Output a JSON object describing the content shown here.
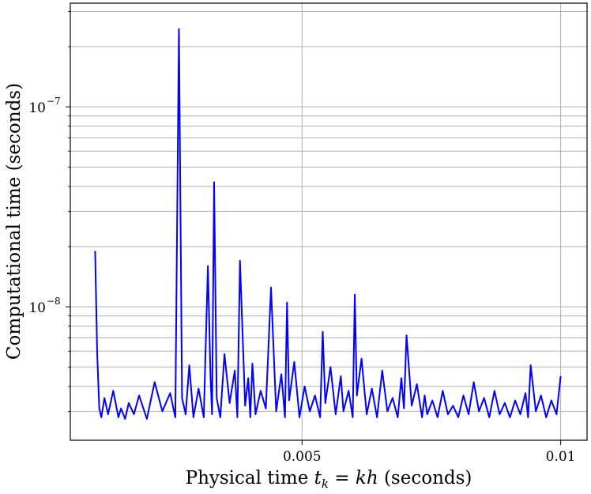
{
  "chart_data": {
    "type": "line",
    "title": "",
    "xlabel_parts": [
      "Physical time ",
      "t",
      "k",
      " = ",
      "kh",
      " (seconds)"
    ],
    "ylabel": "Computational time (seconds)",
    "x_scale": "linear",
    "y_scale": "log",
    "xlim": [
      0.00052,
      0.01051
    ],
    "ylim": [
      2.15e-09,
      3.3e-07
    ],
    "x_ticks": [
      {
        "value": 0.005,
        "label": "0.005"
      },
      {
        "value": 0.01,
        "label": "0.01"
      }
    ],
    "y_major_ticks": [
      {
        "value": 1e-08,
        "base": "10",
        "exp": "−8"
      },
      {
        "value": 1e-07,
        "base": "10",
        "exp": "−7"
      }
    ],
    "y_minor_ticks": [
      3e-09,
      4e-09,
      5e-09,
      6e-09,
      7e-09,
      8e-09,
      9e-09,
      2e-08,
      3e-08,
      4e-08,
      5e-08,
      6e-08,
      7e-08,
      8e-08,
      9e-08,
      2e-07,
      3e-07
    ],
    "grid": true,
    "series": [
      {
        "color": "#0000ff",
        "x": [
          0.001,
          0.00104,
          0.00108,
          0.00112,
          0.00118,
          0.00125,
          0.00135,
          0.00145,
          0.0015,
          0.00158,
          0.00165,
          0.00175,
          0.00185,
          0.002,
          0.00215,
          0.0023,
          0.00245,
          0.00255,
          0.00262,
          0.00268,
          0.00275,
          0.00282,
          0.0029,
          0.003,
          0.0031,
          0.00318,
          0.00323,
          0.00326,
          0.0033,
          0.00335,
          0.00342,
          0.0035,
          0.0036,
          0.0037,
          0.00375,
          0.0038,
          0.0039,
          0.00396,
          0.004,
          0.00404,
          0.0041,
          0.0042,
          0.0043,
          0.0044,
          0.0045,
          0.0046,
          0.00467,
          0.00471,
          0.00475,
          0.00485,
          0.00495,
          0.00505,
          0.00515,
          0.00525,
          0.00535,
          0.0054,
          0.00545,
          0.00555,
          0.00565,
          0.00575,
          0.0058,
          0.0059,
          0.00598,
          0.00602,
          0.00606,
          0.00615,
          0.00625,
          0.00635,
          0.00645,
          0.00655,
          0.00665,
          0.00675,
          0.00685,
          0.00692,
          0.00697,
          0.00702,
          0.00712,
          0.00722,
          0.00732,
          0.00737,
          0.00742,
          0.00752,
          0.00762,
          0.00772,
          0.00782,
          0.00792,
          0.00802,
          0.00812,
          0.00822,
          0.00832,
          0.00842,
          0.00852,
          0.00862,
          0.00872,
          0.00882,
          0.00892,
          0.00902,
          0.00912,
          0.00922,
          0.00932,
          0.00937,
          0.00942,
          0.00952,
          0.00962,
          0.00972,
          0.00982,
          0.00992,
          0.01
        ],
        "y": [
          1.9e-08,
          5.8e-09,
          3.1e-09,
          2.8e-09,
          3.5e-09,
          2.9e-09,
          3.8e-09,
          2.8e-09,
          3.1e-09,
          2.75e-09,
          3.3e-09,
          2.9e-09,
          3.6e-09,
          2.75e-09,
          4.2e-09,
          3e-09,
          3.7e-09,
          2.8e-09,
          2.45e-07,
          3.5e-09,
          2.9e-09,
          5.1e-09,
          2.8e-09,
          3.9e-09,
          2.8e-09,
          1.6e-08,
          4.5e-09,
          2.9e-09,
          4.2e-08,
          3.5e-09,
          2.8e-09,
          5.8e-09,
          3.3e-09,
          4.8e-09,
          2.8e-09,
          1.7e-08,
          3.2e-09,
          4.4e-09,
          2.8e-09,
          5.2e-09,
          2.9e-09,
          3.8e-09,
          3.1e-09,
          1.25e-08,
          3e-09,
          4.6e-09,
          2.8e-09,
          1.05e-08,
          3.4e-09,
          5.3e-09,
          2.8e-09,
          4e-09,
          3e-09,
          3.6e-09,
          2.8e-09,
          7.5e-09,
          3.3e-09,
          5e-09,
          2.9e-09,
          4.5e-09,
          3e-09,
          3.8e-09,
          2.8e-09,
          1.15e-08,
          3.6e-09,
          5.5e-09,
          2.9e-09,
          3.9e-09,
          2.8e-09,
          4.8e-09,
          3e-09,
          3.5e-09,
          2.8e-09,
          4.4e-09,
          3.1e-09,
          7.2e-09,
          3.2e-09,
          4.1e-09,
          2.8e-09,
          3.6e-09,
          2.9e-09,
          3.4e-09,
          2.8e-09,
          3.8e-09,
          2.9e-09,
          3.2e-09,
          2.8e-09,
          3.6e-09,
          2.9e-09,
          4.2e-09,
          3e-09,
          3.5e-09,
          2.8e-09,
          3.8e-09,
          2.9e-09,
          3.3e-09,
          2.8e-09,
          3.4e-09,
          2.9e-09,
          3.7e-09,
          2.8e-09,
          5.1e-09,
          3e-09,
          3.6e-09,
          2.8e-09,
          3.4e-09,
          2.9e-09,
          4.5e-09
        ]
      }
    ]
  }
}
